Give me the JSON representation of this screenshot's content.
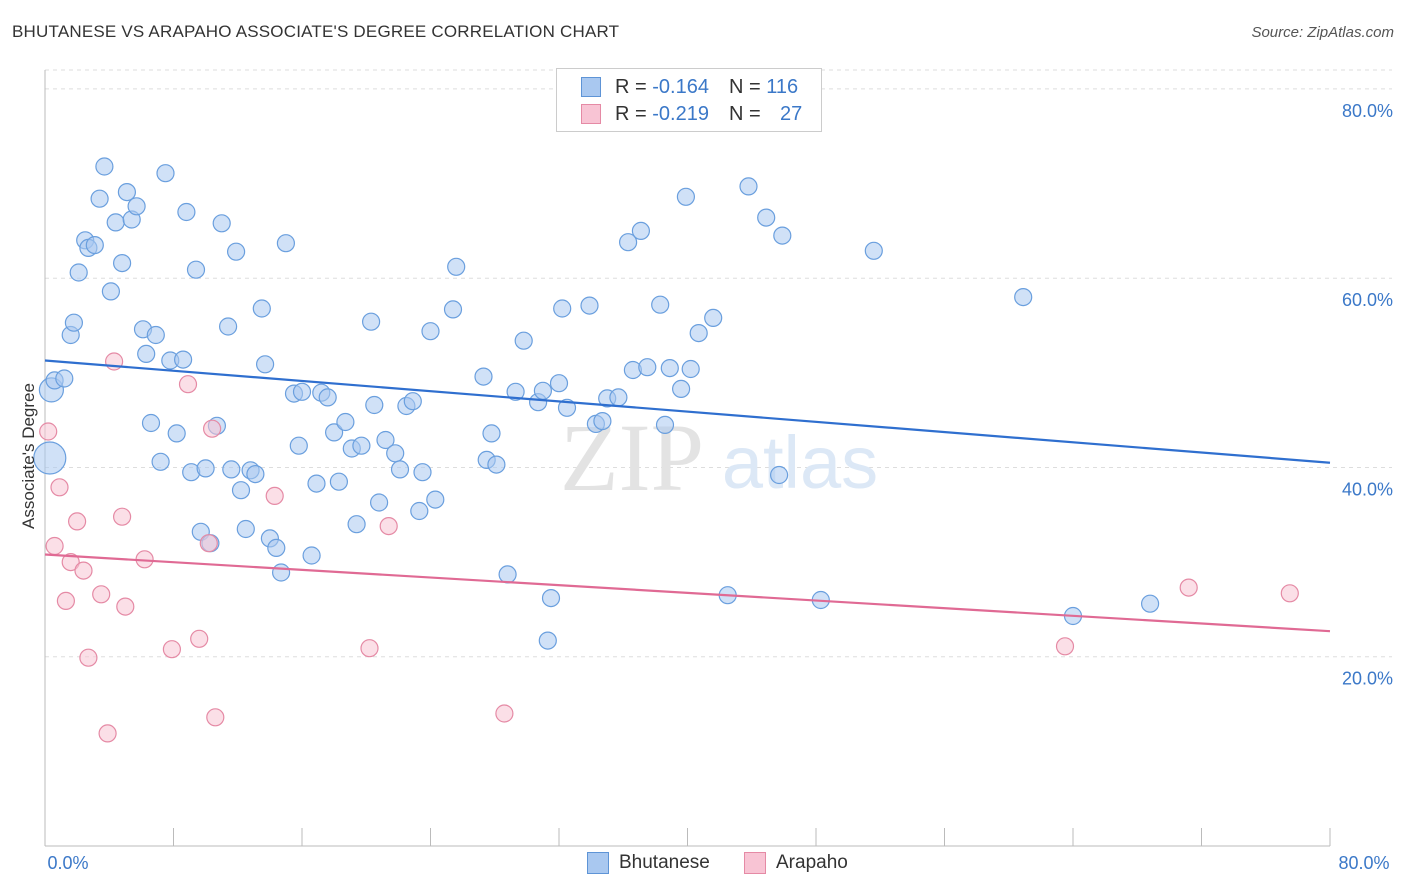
{
  "header": {
    "title": "BHUTANESE VS ARAPAHO ASSOCIATE'S DEGREE CORRELATION CHART",
    "source": "Source: ZipAtlas.com"
  },
  "watermark": {
    "zip": "ZIP",
    "atlas": "atlas"
  },
  "legend": {
    "rows": [
      {
        "r_label": "R =",
        "r_value": "-0.164",
        "n_label": "N =",
        "n_value": "116",
        "color": "#a9c8f0",
        "border": "#5e94d6"
      },
      {
        "r_label": "R =",
        "r_value": "-0.219",
        "n_label": "N =",
        "n_value": "27",
        "color": "#f8c4d4",
        "border": "#e58aa5"
      }
    ]
  },
  "bottom_legend": {
    "items": [
      "Bhutanese",
      "Arapaho"
    ]
  },
  "colors": {
    "bhutanese_fill": "#a9c8f0",
    "bhutanese_stroke": "#6a9fde",
    "bhutanese_line": "#2f6fcf",
    "arapaho_fill": "#f8c4d4",
    "arapaho_stroke": "#e58aa5",
    "arapaho_line": "#e06a94",
    "tick_label": "#3b78c8",
    "grid": "#dddddd"
  },
  "chart_data": {
    "type": "scatter",
    "title": "BHUTANESE VS ARAPAHO ASSOCIATE'S DEGREE CORRELATION CHART",
    "xlabel": "",
    "ylabel": "Associate's Degree",
    "xlim": [
      0,
      80
    ],
    "ylim": [
      0,
      82
    ],
    "x_tick_labels": [
      "0.0%",
      "80.0%"
    ],
    "y_ticks": [
      20,
      40,
      60,
      80
    ],
    "y_tick_labels": [
      "20.0%",
      "40.0%",
      "60.0%",
      "80.0%"
    ],
    "grid": true,
    "series": [
      {
        "name": "Bhutanese",
        "trend": {
          "x0": 0,
          "y0": 51.3,
          "x1": 80,
          "y1": 40.5
        },
        "points": [
          [
            0.4,
            48.2
          ],
          [
            0.6,
            49.2
          ],
          [
            0.3,
            41.0
          ],
          [
            1.2,
            49.4
          ],
          [
            1.6,
            54.0
          ],
          [
            1.8,
            55.3
          ],
          [
            2.1,
            60.6
          ],
          [
            2.5,
            64.0
          ],
          [
            2.7,
            63.2
          ],
          [
            3.1,
            63.5
          ],
          [
            3.4,
            68.4
          ],
          [
            3.7,
            71.8
          ],
          [
            4.1,
            58.6
          ],
          [
            4.4,
            65.9
          ],
          [
            4.8,
            61.6
          ],
          [
            5.1,
            69.1
          ],
          [
            5.4,
            66.2
          ],
          [
            5.7,
            67.6
          ],
          [
            6.1,
            54.6
          ],
          [
            6.3,
            52.0
          ],
          [
            6.6,
            44.7
          ],
          [
            6.9,
            54.0
          ],
          [
            7.2,
            40.6
          ],
          [
            7.5,
            71.1
          ],
          [
            7.8,
            51.3
          ],
          [
            8.2,
            43.6
          ],
          [
            8.6,
            51.4
          ],
          [
            8.8,
            67.0
          ],
          [
            9.1,
            39.5
          ],
          [
            9.4,
            60.9
          ],
          [
            9.7,
            33.2
          ],
          [
            10.0,
            39.9
          ],
          [
            10.3,
            32.0
          ],
          [
            10.7,
            44.4
          ],
          [
            11.0,
            65.8
          ],
          [
            11.4,
            54.9
          ],
          [
            11.6,
            39.8
          ],
          [
            11.9,
            62.8
          ],
          [
            12.2,
            37.6
          ],
          [
            12.5,
            33.5
          ],
          [
            12.8,
            39.7
          ],
          [
            13.1,
            39.3
          ],
          [
            13.5,
            56.8
          ],
          [
            13.7,
            50.9
          ],
          [
            14.0,
            32.5
          ],
          [
            14.4,
            31.5
          ],
          [
            14.7,
            28.9
          ],
          [
            15.0,
            63.7
          ],
          [
            15.5,
            47.8
          ],
          [
            15.8,
            42.3
          ],
          [
            16.0,
            48.0
          ],
          [
            16.6,
            30.7
          ],
          [
            16.9,
            38.3
          ],
          [
            17.2,
            47.9
          ],
          [
            17.6,
            47.4
          ],
          [
            18.0,
            43.7
          ],
          [
            18.3,
            38.5
          ],
          [
            18.7,
            44.8
          ],
          [
            19.1,
            42.0
          ],
          [
            19.4,
            34.0
          ],
          [
            19.7,
            42.3
          ],
          [
            20.3,
            55.4
          ],
          [
            20.5,
            46.6
          ],
          [
            20.8,
            36.3
          ],
          [
            21.2,
            42.9
          ],
          [
            21.8,
            41.5
          ],
          [
            22.1,
            39.8
          ],
          [
            22.5,
            46.5
          ],
          [
            22.9,
            47.0
          ],
          [
            23.3,
            35.4
          ],
          [
            23.5,
            39.5
          ],
          [
            24.0,
            54.4
          ],
          [
            24.3,
            36.6
          ],
          [
            25.4,
            56.7
          ],
          [
            25.6,
            61.2
          ],
          [
            27.3,
            49.6
          ],
          [
            27.5,
            40.8
          ],
          [
            27.8,
            43.6
          ],
          [
            28.1,
            40.3
          ],
          [
            28.8,
            28.7
          ],
          [
            29.3,
            48.0
          ],
          [
            29.8,
            53.4
          ],
          [
            30.7,
            46.9
          ],
          [
            31.0,
            48.1
          ],
          [
            31.3,
            21.7
          ],
          [
            31.5,
            26.2
          ],
          [
            32.0,
            48.9
          ],
          [
            32.2,
            56.8
          ],
          [
            32.5,
            46.3
          ],
          [
            33.9,
            57.1
          ],
          [
            34.3,
            44.6
          ],
          [
            34.7,
            44.9
          ],
          [
            35.0,
            47.3
          ],
          [
            35.7,
            47.4
          ],
          [
            36.3,
            63.8
          ],
          [
            36.6,
            50.3
          ],
          [
            37.1,
            65.0
          ],
          [
            37.5,
            50.6
          ],
          [
            38.3,
            57.2
          ],
          [
            38.6,
            44.5
          ],
          [
            38.9,
            50.5
          ],
          [
            39.6,
            48.3
          ],
          [
            39.9,
            68.6
          ],
          [
            40.2,
            50.4
          ],
          [
            40.7,
            54.2
          ],
          [
            41.6,
            55.8
          ],
          [
            42.5,
            26.5
          ],
          [
            43.8,
            69.7
          ],
          [
            44.9,
            66.4
          ],
          [
            45.9,
            64.5
          ],
          [
            45.7,
            39.2
          ],
          [
            48.3,
            26.0
          ],
          [
            51.6,
            62.9
          ],
          [
            60.9,
            58.0
          ],
          [
            64.0,
            24.3
          ],
          [
            68.8,
            25.6
          ]
        ]
      },
      {
        "name": "Arapaho",
        "trend": {
          "x0": 0,
          "y0": 30.8,
          "x1": 80,
          "y1": 22.7
        },
        "points": [
          [
            0.2,
            43.8
          ],
          [
            0.6,
            31.7
          ],
          [
            0.9,
            37.9
          ],
          [
            1.3,
            25.9
          ],
          [
            1.6,
            30.0
          ],
          [
            2.0,
            34.3
          ],
          [
            2.4,
            29.1
          ],
          [
            2.7,
            19.9
          ],
          [
            3.5,
            26.6
          ],
          [
            3.9,
            11.9
          ],
          [
            4.3,
            51.2
          ],
          [
            4.8,
            34.8
          ],
          [
            5.0,
            25.3
          ],
          [
            6.2,
            30.3
          ],
          [
            7.9,
            20.8
          ],
          [
            8.9,
            48.8
          ],
          [
            9.6,
            21.9
          ],
          [
            10.2,
            32.0
          ],
          [
            10.4,
            44.1
          ],
          [
            10.6,
            13.6
          ],
          [
            14.3,
            37.0
          ],
          [
            20.2,
            20.9
          ],
          [
            21.4,
            33.8
          ],
          [
            28.6,
            14.0
          ],
          [
            63.5,
            21.1
          ],
          [
            71.2,
            27.3
          ],
          [
            77.5,
            26.7
          ]
        ]
      }
    ]
  }
}
